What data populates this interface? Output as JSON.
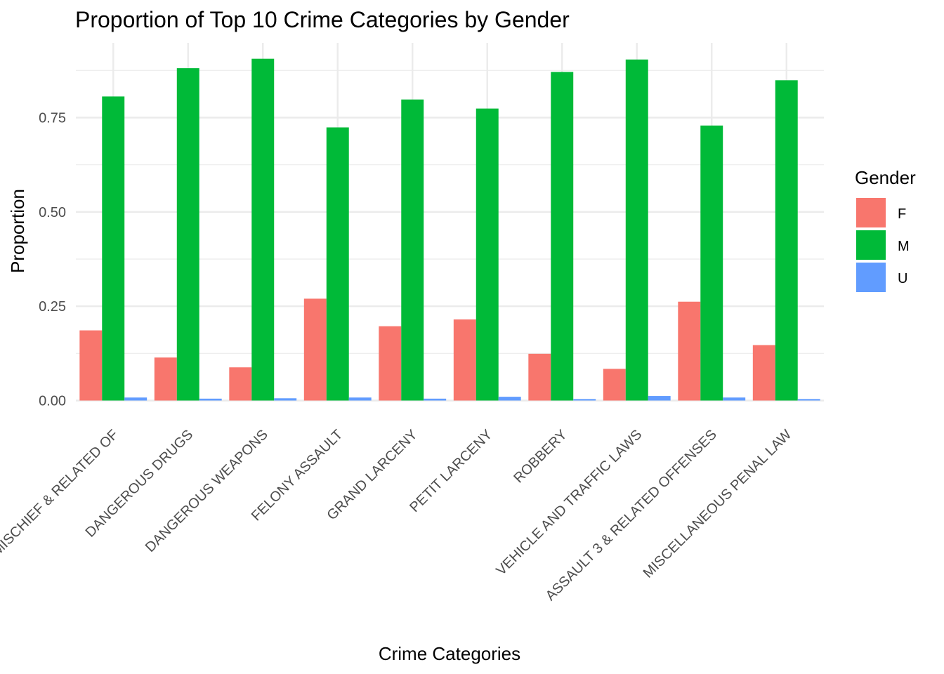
{
  "chart_data": {
    "type": "bar",
    "title": "Proportion of Top 10 Crime Categories by Gender",
    "xlabel": "Crime Categories",
    "ylabel": "Proportion",
    "ylim": [
      0,
      0.93
    ],
    "yticks": [
      0,
      0.25,
      0.5,
      0.75
    ],
    "ytick_labels": [
      "0.00",
      "0.25",
      "0.50",
      "0.75"
    ],
    "grid": true,
    "legend_position": "right",
    "legend_title": "Gender",
    "categories": [
      "CRIMINAL MISCHIEF & RELATED OF",
      "DANGEROUS DRUGS",
      "DANGEROUS WEAPONS",
      "FELONY ASSAULT",
      "GRAND LARCENY",
      "PETIT LARCENY",
      "ROBBERY",
      "VEHICLE AND TRAFFIC LAWS",
      "ASSAULT 3 & RELATED OFFENSES",
      "MISCELLANEOUS PENAL LAW"
    ],
    "series": [
      {
        "name": "F",
        "color": "#F8766D",
        "values": [
          0.186,
          0.114,
          0.088,
          0.27,
          0.197,
          0.215,
          0.124,
          0.084,
          0.262,
          0.147
        ]
      },
      {
        "name": "M",
        "color": "#00BA38",
        "values": [
          0.806,
          0.881,
          0.906,
          0.724,
          0.798,
          0.774,
          0.871,
          0.904,
          0.729,
          0.849
        ]
      },
      {
        "name": "U",
        "color": "#619CFF",
        "values": [
          0.008,
          0.005,
          0.006,
          0.008,
          0.005,
          0.01,
          0.004,
          0.012,
          0.008,
          0.004
        ]
      }
    ]
  }
}
